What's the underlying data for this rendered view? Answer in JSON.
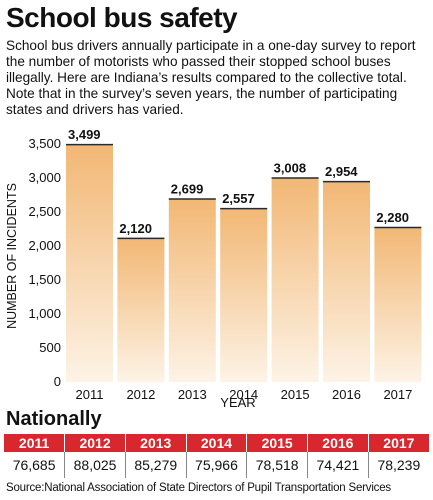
{
  "header": {
    "title": "School bus safety",
    "subtitle": "School bus drivers annually participate in a one-day survey to report the number of motorists who passed their stopped school buses illegally. Here are Indiana’s results compared to the collective total. Note that in the survey’s seven years, the number of participating states and drivers has varied."
  },
  "chart_data": {
    "type": "bar",
    "categories": [
      "2011",
      "2012",
      "2013",
      "2014",
      "2015",
      "2016",
      "2017"
    ],
    "values": [
      3499,
      2120,
      2699,
      2557,
      3008,
      2954,
      2280
    ],
    "value_labels": [
      "3,499",
      "2,120",
      "2,699",
      "2,557",
      "3,008",
      "2,954",
      "2,280"
    ],
    "xlabel": "YEAR",
    "ylabel": "NUMBER OF INCIDENTS",
    "ylim": [
      0,
      3500
    ],
    "yticks": [
      0,
      500,
      1000,
      1500,
      2000,
      2500,
      3000,
      3500
    ],
    "ytick_labels": [
      "0",
      "500",
      "1,000",
      "1,500",
      "2,000",
      "2,500",
      "3,000",
      "3,500"
    ],
    "grid": false,
    "colors": {
      "bar_top": "#f2b774",
      "bar_bottom": "#fdf3e6"
    }
  },
  "nationally": {
    "title": "Nationally",
    "header_color": "#d9272e",
    "years": [
      "2011",
      "2012",
      "2013",
      "2014",
      "2015",
      "2016",
      "2017"
    ],
    "values": [
      "76,685",
      "88,025",
      "85,279",
      "75,966",
      "78,518",
      "74,421",
      "78,239"
    ]
  },
  "source": "Source:National Association of State Directors of Pupil Transportation Services"
}
